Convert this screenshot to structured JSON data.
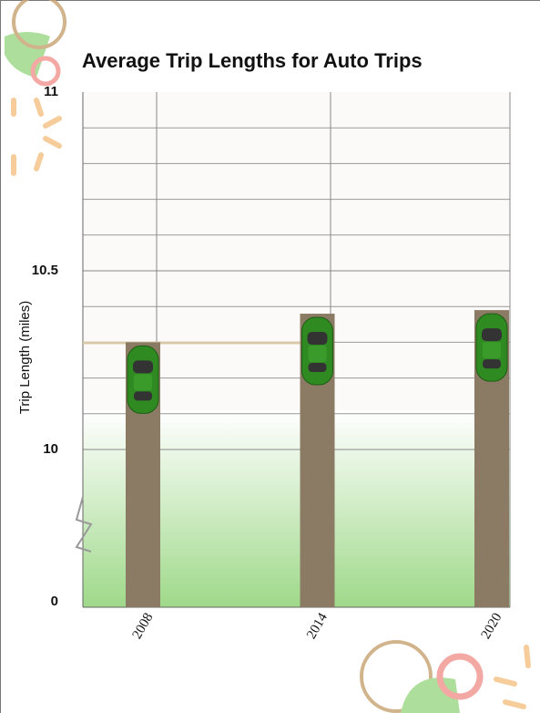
{
  "chart_data": {
    "type": "bar",
    "title": "Average Trip Lengths for Auto Trips",
    "y_label": "Trip Length (miles)",
    "categories": [
      "2008",
      "2014",
      "2020"
    ],
    "values": [
      10.3,
      10.38,
      10.39
    ],
    "color": "#8b7b64",
    "ylim": [
      0,
      11
    ],
    "axis_break": [
      0,
      10
    ],
    "yticks": [
      0,
      10,
      10.5,
      11
    ],
    "minor_yticks": [
      10.1,
      10.2,
      10.3,
      10.4,
      10.6,
      10.7,
      10.8,
      10.9
    ],
    "grid": true
  }
}
